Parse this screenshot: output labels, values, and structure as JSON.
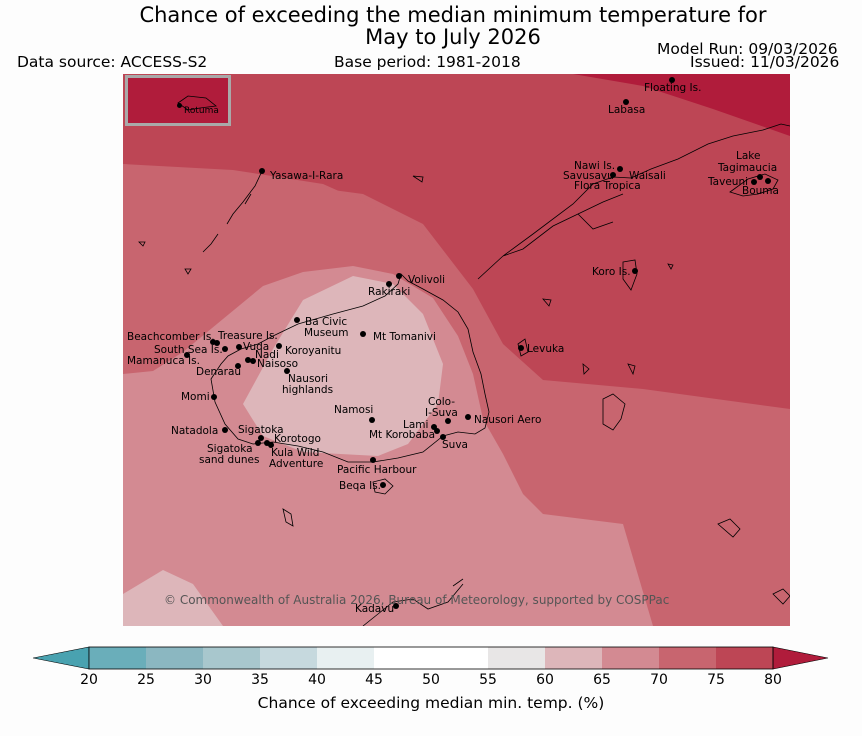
{
  "title_line1": "Chance of exceeding the median minimum temperature for",
  "title_line2": "May to July 2026",
  "data_source": "Data source: ACCESS-S2",
  "base_period": "Base period: 1981-2018",
  "model_run": "Model Run: 09/03/2026",
  "issued": "Issued: 11/03/2026",
  "copyright": "© Commonwealth of Australia 2026, Bureau of Meteorology, supported by COSPPac",
  "inset_place": "Rotuma",
  "places": {
    "floating_is": "Floating Is.",
    "labasa": "Labasa",
    "yasawa": "Yasawa-I-Rara",
    "nawi": "Nawi Is.",
    "savusavu": "Savusavu",
    "waisali": "Waisali",
    "flora_tropica": "Flora Tropica",
    "lake_tagimaucia_1": "Lake",
    "lake_tagimaucia_2": "Tagimaucia",
    "taveuni": "Taveuni",
    "bouma": "Bouma",
    "koro": "Koro Is.",
    "volivoli": "Volivoli",
    "rakiraki": "Rakiraki",
    "ba_civic_1": "Ba Civic",
    "ba_civic_2": "Museum",
    "mt_tomanivi": "Mt Tomanivi",
    "beachcomber": "Beachcomber Is.",
    "treasure": "Treasure Is.",
    "south_sea": "South Sea Is.",
    "vuda": "Vuda",
    "koroyanitu": "Koroyanitu",
    "nadi": "Nadi",
    "mamanuca": "Mamanuca Is.",
    "naisoso": "Naisoso",
    "denarau": "Denarau",
    "nausori_highlands_1": "Nausori",
    "nausori_highlands_2": "highlands",
    "levuka": "Levuka",
    "momi": "Momi",
    "namosi": "Namosi",
    "colo_suva_1": "Colo-",
    "colo_suva_2": "I-Suva",
    "nausori_aero": "Nausori Aero",
    "lami": "Lami",
    "mt_korobaba": "Mt Korobaba",
    "suva": "Suva",
    "natadola": "Natadola",
    "sigatoka": "Sigatoka",
    "korotogo": "Korotogo",
    "sigatoka_dunes_1": "Sigatoka",
    "sigatoka_dunes_2": "sand dunes",
    "kula_1": "Kula Wild",
    "kula_2": "Adventure",
    "pacific_harbour": "Pacific Harbour",
    "beqa": "Beqa Is.",
    "kadavu": "Kadavu"
  },
  "colorbar": {
    "label": "Chance of exceeding median min. temp. (%)",
    "ticks": [
      "20",
      "25",
      "30",
      "35",
      "40",
      "45",
      "50",
      "55",
      "60",
      "65",
      "70",
      "75",
      "80"
    ],
    "colors": [
      "#49a2b0",
      "#6aaeba",
      "#8bb7c1",
      "#a8c7cd",
      "#c6d9de",
      "#e8f0f1",
      "#ffffff",
      "#ffffff",
      "#e8e6e6",
      "#ddb6ba",
      "#d38a92",
      "#c8656f",
      "#bd4655",
      "#b01c3b"
    ]
  }
}
